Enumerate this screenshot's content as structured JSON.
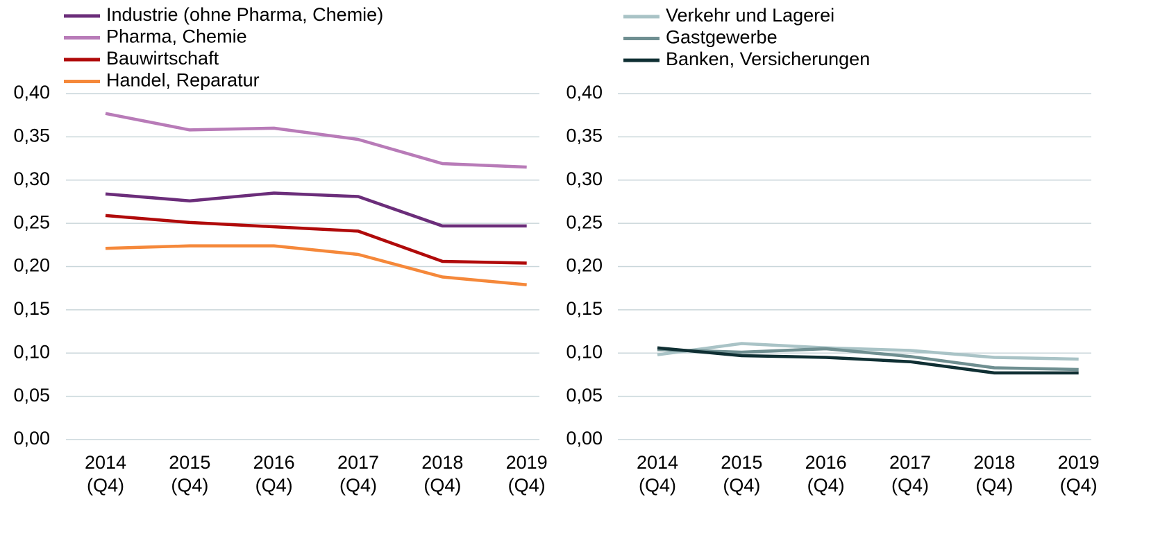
{
  "chart_data": [
    {
      "type": "line",
      "categories": [
        "2014 (Q4)",
        "2015 (Q4)",
        "2016 (Q4)",
        "2017 (Q4)",
        "2018 (Q4)",
        "2019 (Q4)"
      ],
      "series": [
        {
          "name": "Industrie (ohne Pharma, Chemie)",
          "color": "#6b2d7a",
          "values": [
            0.284,
            0.276,
            0.285,
            0.281,
            0.247,
            0.247
          ]
        },
        {
          "name": "Pharma, Chemie",
          "color": "#b87bb8",
          "values": [
            0.377,
            0.358,
            0.36,
            0.347,
            0.319,
            0.315
          ]
        },
        {
          "name": "Bauwirtschaft",
          "color": "#b00a0a",
          "values": [
            0.259,
            0.251,
            0.246,
            0.241,
            0.206,
            0.204
          ]
        },
        {
          "name": "Handel, Reparatur",
          "color": "#f5883a",
          "values": [
            0.221,
            0.224,
            0.224,
            0.214,
            0.188,
            0.179
          ]
        }
      ],
      "ylim": [
        0,
        0.4
      ],
      "yticks": [
        {
          "value": 0,
          "label": "0,00"
        },
        {
          "value": 0.05,
          "label": "0,05"
        },
        {
          "value": 0.1,
          "label": "0,10"
        },
        {
          "value": 0.15,
          "label": "0,15"
        },
        {
          "value": 0.2,
          "label": "0,20"
        },
        {
          "value": 0.25,
          "label": "0,25"
        },
        {
          "value": 0.3,
          "label": "0,30"
        },
        {
          "value": 0.35,
          "label": "0,35"
        },
        {
          "value": 0.4,
          "label": "0,40"
        }
      ],
      "grid": true,
      "legend": "top"
    },
    {
      "type": "line",
      "categories": [
        "2014 (Q4)",
        "2015 (Q4)",
        "2016 (Q4)",
        "2017 (Q4)",
        "2018 (Q4)",
        "2019 (Q4)"
      ],
      "series": [
        {
          "name": "Verkehr und Lagerei",
          "color": "#a9c3c6",
          "values": [
            0.098,
            0.111,
            0.106,
            0.103,
            0.095,
            0.093
          ]
        },
        {
          "name": "Gastgewerbe",
          "color": "#6f8f91",
          "values": [
            0.104,
            0.101,
            0.105,
            0.096,
            0.083,
            0.081
          ]
        },
        {
          "name": "Banken, Versicherungen",
          "color": "#0f2f33",
          "values": [
            0.106,
            0.097,
            0.095,
            0.09,
            0.077,
            0.077
          ]
        }
      ],
      "ylim": [
        0,
        0.4
      ],
      "yticks": [
        {
          "value": 0,
          "label": "0,00"
        },
        {
          "value": 0.05,
          "label": "0,05"
        },
        {
          "value": 0.1,
          "label": "0,10"
        },
        {
          "value": 0.15,
          "label": "0,15"
        },
        {
          "value": 0.2,
          "label": "0,20"
        },
        {
          "value": 0.25,
          "label": "0,25"
        },
        {
          "value": 0.3,
          "label": "0,30"
        },
        {
          "value": 0.35,
          "label": "0,35"
        },
        {
          "value": 0.4,
          "label": "0,40"
        }
      ],
      "grid": true,
      "legend": "top"
    }
  ]
}
